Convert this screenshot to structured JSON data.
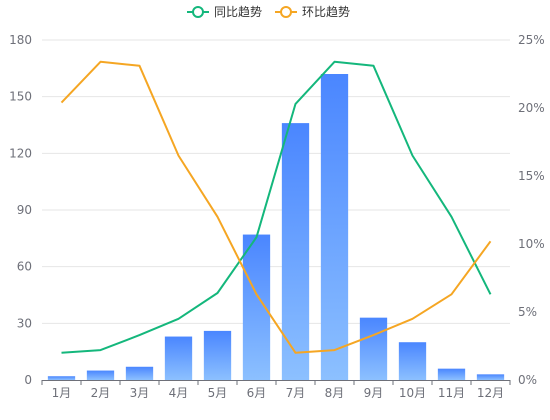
{
  "chart_data": {
    "type": "bar",
    "categories": [
      "1月",
      "2月",
      "3月",
      "4月",
      "5月",
      "6月",
      "7月",
      "8月",
      "9月",
      "10月",
      "11月",
      "12月"
    ],
    "bar_values": [
      2,
      5,
      7,
      23,
      26,
      77,
      136,
      162,
      33,
      20,
      6,
      3
    ],
    "series": [
      {
        "name": "同比趋势",
        "type": "line",
        "axis": "right",
        "color": "#14b77c",
        "values": [
          2.0,
          2.2,
          3.3,
          4.5,
          6.4,
          10.5,
          20.3,
          23.4,
          23.1,
          16.5,
          12.0,
          6.3
        ]
      },
      {
        "name": "环比趋势",
        "type": "line",
        "axis": "right",
        "color": "#f5a623",
        "values": [
          20.4,
          23.4,
          23.1,
          16.5,
          12.0,
          6.3,
          2.0,
          2.2,
          3.3,
          4.5,
          6.3,
          10.2
        ]
      }
    ],
    "y_left": {
      "ylim": [
        0,
        180
      ],
      "ticks": [
        "0",
        "30",
        "60",
        "90",
        "120",
        "150",
        "180"
      ]
    },
    "y_right": {
      "ylim": [
        0,
        25
      ],
      "ticks": [
        "0%",
        "5%",
        "10%",
        "15%",
        "20%",
        "25%"
      ]
    },
    "grid": true,
    "legend_position": "top-center",
    "bar_gradient": [
      "#4a86ff",
      "#8cc0ff"
    ]
  }
}
